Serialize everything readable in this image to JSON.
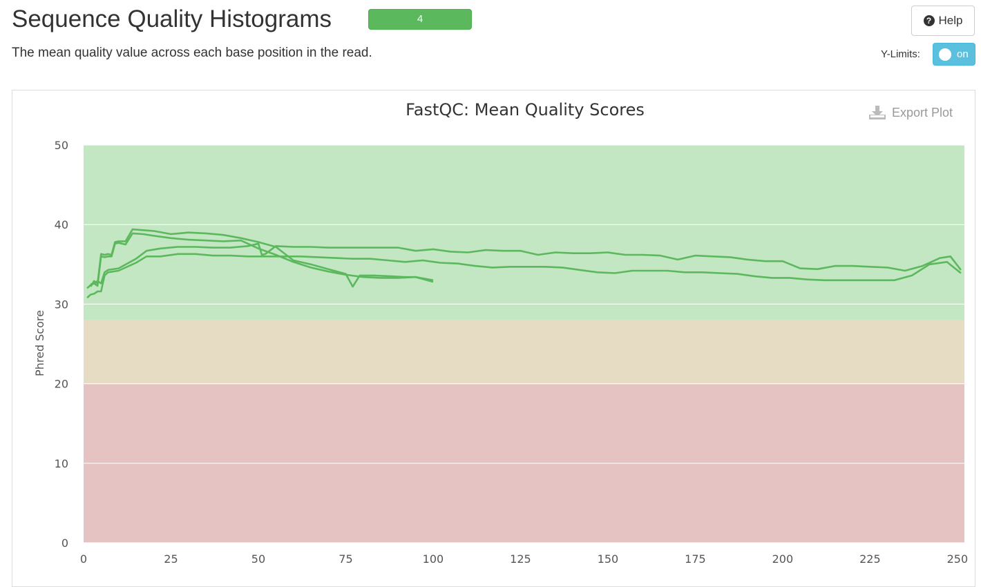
{
  "header": {
    "title": "Sequence Quality Histograms",
    "badge_count": "4",
    "description": "The mean quality value across each base position in the read.",
    "help_label": "Help",
    "ylimits_label": "Y-Limits:",
    "ylimits_toggle": "on"
  },
  "plot": {
    "export_label": "Export Plot"
  },
  "colors": {
    "line": "#5cb85c",
    "band_good": "#c3e6c3",
    "band_warn": "#e6dcc3",
    "band_fail": "#e6c3c3",
    "badge": "#5cb85c",
    "toggle": "#5bc0de"
  },
  "chart_data": {
    "type": "line",
    "title": "FastQC: Mean Quality Scores",
    "xlabel": "",
    "ylabel": "Phred Score",
    "xlim": [
      0,
      252
    ],
    "ylim": [
      0,
      50
    ],
    "xticks": [
      0,
      25,
      50,
      75,
      100,
      125,
      150,
      175,
      200,
      225,
      250
    ],
    "yticks": [
      0,
      10,
      20,
      30,
      40,
      50
    ],
    "grid": true,
    "bands": [
      {
        "from": 28,
        "to": 50,
        "color": "#c3e6c3"
      },
      {
        "from": 20,
        "to": 28,
        "color": "#e6dcc3"
      },
      {
        "from": 0,
        "to": 20,
        "color": "#e6c3c3"
      }
    ],
    "series": [
      {
        "x": [
          2,
          3,
          4,
          5,
          6,
          7,
          8,
          9,
          10,
          12,
          14,
          17,
          20,
          25,
          30,
          35,
          40,
          45,
          50,
          55,
          60,
          65,
          70,
          75,
          77,
          79,
          83,
          88,
          92,
          95,
          100
        ],
        "y": [
          32.2,
          32.9,
          32.6,
          36.3,
          36.2,
          36.3,
          36.2,
          37.8,
          37.9,
          37.9,
          39.4,
          39.3,
          39.2,
          38.8,
          39.0,
          38.9,
          38.7,
          38.3,
          37.8,
          37.2,
          35.5,
          35.0,
          34.4,
          33.8,
          32.2,
          33.6,
          33.6,
          33.5,
          33.4,
          33.4,
          33.0
        ]
      },
      {
        "x": [
          2,
          3,
          4,
          5,
          6,
          7,
          8,
          9,
          10,
          12,
          14,
          17,
          20,
          25,
          30,
          35,
          40,
          45,
          50,
          55,
          60,
          65,
          70,
          75,
          80,
          85,
          90,
          95,
          100
        ],
        "y": [
          32.5,
          32.6,
          32.3,
          36.0,
          35.9,
          36.0,
          36.0,
          37.6,
          37.7,
          37.5,
          38.9,
          38.8,
          38.6,
          38.3,
          38.1,
          38.0,
          37.9,
          38.0,
          37.0,
          36.2,
          35.3,
          34.6,
          34.1,
          33.7,
          33.4,
          33.3,
          33.3,
          33.4,
          32.8
        ]
      },
      {
        "x": [
          1,
          2,
          3,
          4,
          5,
          6,
          7,
          10,
          15,
          18,
          22,
          27,
          32,
          37,
          42,
          47,
          50,
          51,
          52,
          55,
          60,
          65,
          70,
          75,
          80,
          85,
          90,
          95,
          100,
          105,
          110,
          115,
          120,
          125,
          130,
          135,
          140,
          145,
          150,
          155,
          160,
          165,
          170,
          175,
          180,
          185,
          190,
          195,
          200,
          205,
          210,
          215,
          220,
          225,
          230,
          235,
          240,
          245,
          248,
          251
        ],
        "y": [
          32.0,
          32.4,
          32.6,
          32.9,
          32.6,
          34.0,
          34.3,
          34.5,
          35.7,
          36.7,
          37.0,
          37.2,
          37.2,
          37.1,
          37.1,
          37.3,
          37.6,
          36.2,
          36.3,
          37.3,
          37.2,
          37.2,
          37.1,
          37.1,
          37.1,
          37.1,
          37.1,
          36.7,
          36.9,
          36.6,
          36.5,
          36.8,
          36.7,
          36.7,
          36.2,
          36.5,
          36.4,
          36.4,
          36.5,
          36.2,
          36.2,
          36.1,
          35.6,
          36.1,
          36.0,
          35.9,
          35.6,
          35.4,
          35.4,
          34.5,
          34.4,
          34.8,
          34.8,
          34.7,
          34.6,
          34.2,
          34.8,
          35.8,
          36.0,
          34.3
        ]
      },
      {
        "x": [
          1,
          2,
          3,
          4,
          5,
          6,
          7,
          10,
          15,
          18,
          22,
          27,
          32,
          37,
          42,
          47,
          52,
          57,
          62,
          67,
          72,
          77,
          82,
          87,
          92,
          97,
          102,
          107,
          112,
          117,
          122,
          127,
          132,
          137,
          142,
          147,
          152,
          157,
          162,
          167,
          172,
          177,
          182,
          187,
          192,
          197,
          202,
          207,
          212,
          217,
          222,
          227,
          232,
          237,
          242,
          247,
          251
        ],
        "y": [
          30.8,
          31.2,
          31.3,
          31.6,
          31.6,
          33.6,
          34.0,
          34.2,
          35.2,
          36.0,
          36.0,
          36.3,
          36.3,
          36.1,
          36.1,
          36.0,
          36.0,
          36.0,
          36.0,
          35.9,
          35.8,
          35.7,
          35.7,
          35.5,
          35.3,
          35.5,
          35.2,
          35.1,
          34.8,
          34.6,
          34.7,
          34.7,
          34.7,
          34.6,
          34.3,
          34.0,
          33.9,
          34.2,
          34.2,
          34.2,
          34.0,
          34.0,
          33.9,
          33.8,
          33.5,
          33.3,
          33.3,
          33.1,
          33.0,
          33.0,
          33.0,
          33.0,
          33.0,
          33.6,
          35.0,
          35.3,
          33.9
        ]
      }
    ]
  }
}
